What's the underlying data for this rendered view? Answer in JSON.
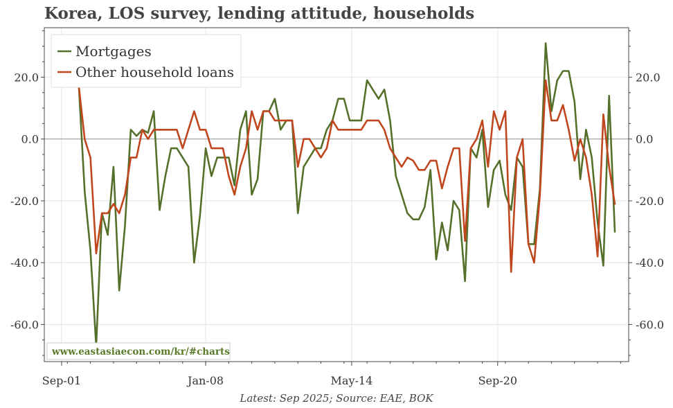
{
  "chart_data": {
    "type": "line",
    "title": "Korea, LOS survey, lending attitude, households",
    "xlabel": "",
    "ylabel": "",
    "ylim": [
      -72,
      36
    ],
    "yticks": [
      20.0,
      0.0,
      -20.0,
      -40.0,
      -60.0
    ],
    "ytick_labels": [
      "20.0",
      "0.0",
      "-20.0",
      "-40.0",
      "-60.0"
    ],
    "xtick_labels": [
      "Sep-01",
      "Jan-08",
      "May-14",
      "Sep-20"
    ],
    "xtick_positions": [
      2001.75,
      2008.0,
      2014.333,
      2020.667
    ],
    "watermark": "www.eastasiaecon.com/kr/#charts",
    "footer": "Latest: Sep 2025; Source: EAE, BOK",
    "legend_position": "top-left",
    "series": [
      {
        "name": "Mortgages",
        "color": "#55702a",
        "x": [
          2002.5,
          2002.75,
          2003.0,
          2003.25,
          2003.5,
          2003.75,
          2004.0,
          2004.25,
          2004.5,
          2004.75,
          2005.0,
          2005.25,
          2005.5,
          2005.75,
          2006.0,
          2006.25,
          2006.5,
          2006.75,
          2007.0,
          2007.25,
          2007.5,
          2007.75,
          2008.0,
          2008.25,
          2008.5,
          2008.75,
          2009.0,
          2009.25,
          2009.5,
          2009.75,
          2010.0,
          2010.25,
          2010.5,
          2010.75,
          2011.0,
          2011.25,
          2011.5,
          2011.75,
          2012.0,
          2012.25,
          2012.5,
          2012.75,
          2013.0,
          2013.25,
          2013.5,
          2013.75,
          2014.0,
          2014.25,
          2014.5,
          2014.75,
          2015.0,
          2015.25,
          2015.5,
          2015.75,
          2016.0,
          2016.25,
          2016.5,
          2016.75,
          2017.0,
          2017.25,
          2017.5,
          2017.75,
          2018.0,
          2018.25,
          2018.5,
          2018.75,
          2019.0,
          2019.25,
          2019.5,
          2019.75,
          2020.0,
          2020.25,
          2020.5,
          2020.75,
          2021.0,
          2021.25,
          2021.5,
          2021.75,
          2022.0,
          2022.25,
          2022.5,
          2022.75,
          2023.0,
          2023.25,
          2023.5,
          2023.75,
          2024.0,
          2024.25,
          2024.5,
          2024.75,
          2025.0,
          2025.25,
          2025.5,
          2025.75
        ],
        "values": [
          17,
          -17,
          -36,
          -67,
          -24,
          -31,
          -9,
          -49,
          -28,
          3,
          1,
          3,
          2,
          9,
          -23,
          -12,
          -3,
          -3,
          -6,
          -9,
          -40,
          -25,
          -3,
          -12,
          -6,
          -6,
          -6,
          -15,
          3,
          9,
          -18,
          -13,
          9,
          9,
          13,
          3,
          6,
          6,
          -24,
          -9,
          -6,
          -3,
          -3,
          3,
          6,
          13,
          13,
          6,
          6,
          6,
          19,
          16,
          13,
          16,
          6,
          -12,
          -18,
          -24,
          -26,
          -26,
          -22,
          -10,
          -39,
          -27,
          -36,
          -20,
          -23,
          -46,
          -3,
          -6,
          3,
          -22,
          -10,
          -7,
          -18,
          -23,
          -6,
          -9,
          -34,
          -34,
          -16,
          31,
          9,
          19,
          22,
          22,
          12,
          -13,
          3,
          -6,
          -27,
          -41,
          14,
          -30
        ]
      },
      {
        "name": "Other household loans",
        "color": "#c0461e",
        "x": [
          2002.5,
          2002.75,
          2003.0,
          2003.25,
          2003.5,
          2003.75,
          2004.0,
          2004.25,
          2004.5,
          2004.75,
          2005.0,
          2005.25,
          2005.5,
          2005.75,
          2006.0,
          2006.25,
          2006.5,
          2006.75,
          2007.0,
          2007.25,
          2007.5,
          2007.75,
          2008.0,
          2008.25,
          2008.5,
          2008.75,
          2009.0,
          2009.25,
          2009.5,
          2009.75,
          2010.0,
          2010.25,
          2010.5,
          2010.75,
          2011.0,
          2011.25,
          2011.5,
          2011.75,
          2012.0,
          2012.25,
          2012.5,
          2012.75,
          2013.0,
          2013.25,
          2013.5,
          2013.75,
          2014.0,
          2014.25,
          2014.5,
          2014.75,
          2015.0,
          2015.25,
          2015.5,
          2015.75,
          2016.0,
          2016.25,
          2016.5,
          2016.75,
          2017.0,
          2017.25,
          2017.5,
          2017.75,
          2018.0,
          2018.25,
          2018.5,
          2018.75,
          2019.0,
          2019.25,
          2019.5,
          2019.75,
          2020.0,
          2020.25,
          2020.5,
          2020.75,
          2021.0,
          2021.25,
          2021.5,
          2021.75,
          2022.0,
          2022.25,
          2022.5,
          2022.75,
          2023.0,
          2023.25,
          2023.5,
          2023.75,
          2024.0,
          2024.25,
          2024.5,
          2024.75,
          2025.0,
          2025.25,
          2025.5,
          2025.75
        ],
        "values": [
          17,
          0,
          -6,
          -37,
          -24,
          -24,
          -21,
          -24,
          -18,
          -6,
          -6,
          3,
          0,
          3,
          3,
          3,
          3,
          3,
          -3,
          3,
          9,
          3,
          3,
          -3,
          -3,
          -3,
          -12,
          -18,
          -9,
          -3,
          9,
          3,
          9,
          9,
          6,
          6,
          6,
          6,
          -9,
          0,
          0,
          -3,
          -6,
          -3,
          6,
          3,
          3,
          3,
          3,
          3,
          6,
          6,
          6,
          3,
          -3,
          -6,
          -9,
          -6,
          -7,
          -10,
          -10,
          -7,
          -7,
          -16,
          -9,
          -3,
          -3,
          -33,
          -3,
          0,
          6,
          -9,
          9,
          3,
          9,
          -43,
          -6,
          0,
          -34,
          -40,
          -18,
          19,
          6,
          6,
          11,
          3,
          -7,
          0,
          -6,
          -18,
          -38,
          8,
          -9,
          -21
        ]
      }
    ]
  }
}
